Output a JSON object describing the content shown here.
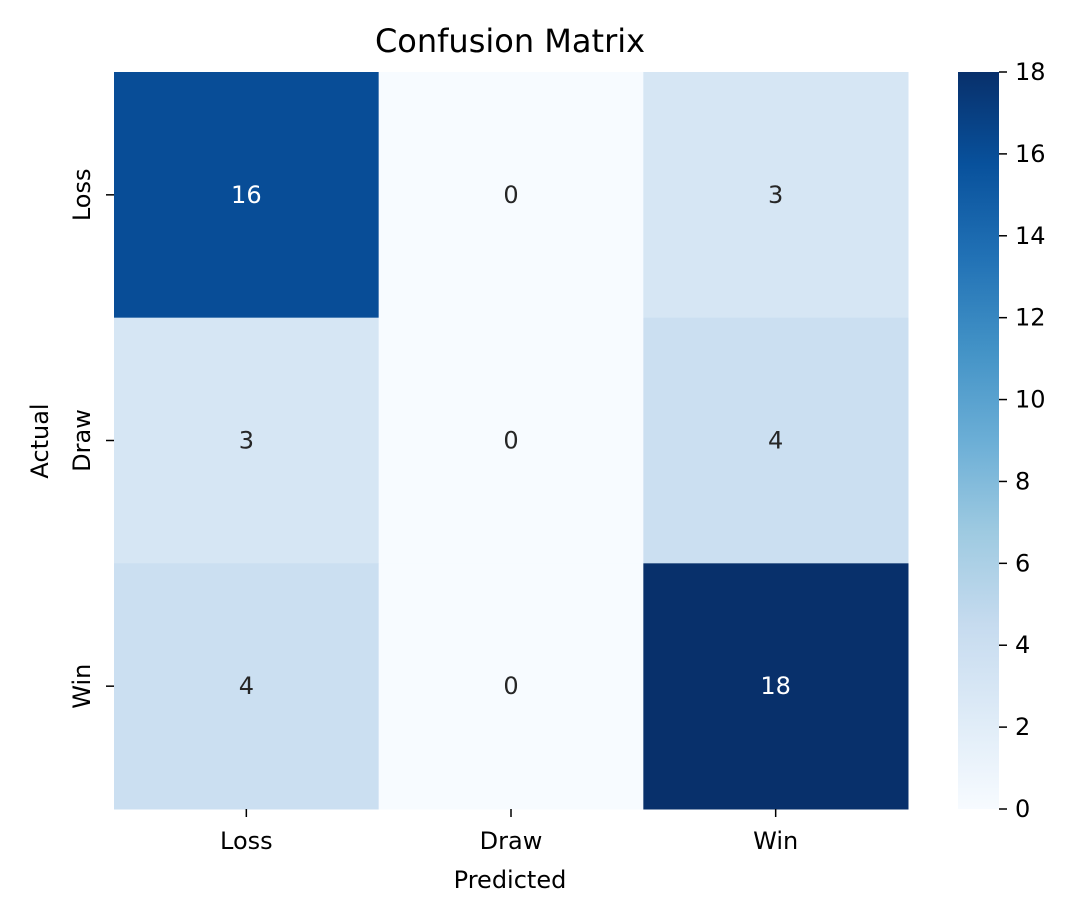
{
  "chart_data": {
    "type": "heatmap",
    "title": "Confusion Matrix",
    "xlabel": "Predicted",
    "ylabel": "Actual",
    "x_categories": [
      "Loss",
      "Draw",
      "Win"
    ],
    "y_categories": [
      "Loss",
      "Draw",
      "Win"
    ],
    "values": [
      [
        16,
        0,
        3
      ],
      [
        3,
        0,
        4
      ],
      [
        4,
        0,
        18
      ]
    ],
    "colormap": "Blues",
    "colorbar": {
      "range": [
        0,
        18
      ],
      "ticks": [
        0,
        2,
        4,
        6,
        8,
        10,
        12,
        14,
        16,
        18
      ]
    },
    "grid": false
  }
}
